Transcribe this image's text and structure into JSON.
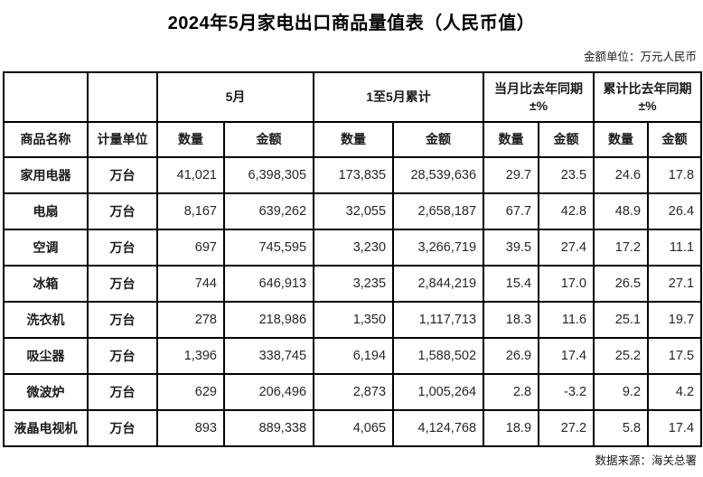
{
  "page": {
    "title": "2024年5月家电出口商品量值表（人民币值）",
    "unit_note": "金额单位：万元人民币",
    "source_note": "数据来源：海关总署"
  },
  "table": {
    "groups": {
      "may": "5月",
      "cumulative": "1至5月累计",
      "month_yoy_line1": "当月比去年同期",
      "month_yoy_line2": "±%",
      "cum_yoy_line1": "累计比去年同期",
      "cum_yoy_line2": "±%"
    },
    "headers": {
      "product": "商品名称",
      "unit": "计量单位",
      "qty": "数量",
      "amount": "金额"
    },
    "column_keys": [
      "product",
      "unit",
      "may_qty",
      "may_amount",
      "cum_qty",
      "cum_amount",
      "month_qty_pct",
      "month_amount_pct",
      "cum_qty_pct",
      "cum_amount_pct"
    ],
    "column_cell_names": [
      "product-name-cell",
      "measure-unit-cell",
      "may-qty-cell",
      "may-amount-cell",
      "cumulative-qty-cell",
      "cumulative-amount-cell",
      "month-yoy-qty-pct-cell",
      "month-yoy-amount-pct-cell",
      "cumulative-yoy-qty-pct-cell",
      "cumulative-yoy-amount-pct-cell"
    ],
    "rows": [
      {
        "product": "家用电器",
        "unit": "万台",
        "may_qty": "41,021",
        "may_amount": "6,398,305",
        "cum_qty": "173,835",
        "cum_amount": "28,539,636",
        "month_qty_pct": "29.7",
        "month_amount_pct": "23.5",
        "cum_qty_pct": "24.6",
        "cum_amount_pct": "17.8"
      },
      {
        "product": "电扇",
        "unit": "万台",
        "may_qty": "8,167",
        "may_amount": "639,262",
        "cum_qty": "32,055",
        "cum_amount": "2,658,187",
        "month_qty_pct": "67.7",
        "month_amount_pct": "42.8",
        "cum_qty_pct": "48.9",
        "cum_amount_pct": "26.4"
      },
      {
        "product": "空调",
        "unit": "万台",
        "may_qty": "697",
        "may_amount": "745,595",
        "cum_qty": "3,230",
        "cum_amount": "3,266,719",
        "month_qty_pct": "39.5",
        "month_amount_pct": "27.4",
        "cum_qty_pct": "17.2",
        "cum_amount_pct": "11.1"
      },
      {
        "product": "冰箱",
        "unit": "万台",
        "may_qty": "744",
        "may_amount": "646,913",
        "cum_qty": "3,235",
        "cum_amount": "2,844,219",
        "month_qty_pct": "15.4",
        "month_amount_pct": "17.0",
        "cum_qty_pct": "26.5",
        "cum_amount_pct": "27.1"
      },
      {
        "product": "洗衣机",
        "unit": "万台",
        "may_qty": "278",
        "may_amount": "218,986",
        "cum_qty": "1,350",
        "cum_amount": "1,117,713",
        "month_qty_pct": "18.3",
        "month_amount_pct": "11.6",
        "cum_qty_pct": "25.1",
        "cum_amount_pct": "19.7"
      },
      {
        "product": "吸尘器",
        "unit": "万台",
        "may_qty": "1,396",
        "may_amount": "338,745",
        "cum_qty": "6,194",
        "cum_amount": "1,588,502",
        "month_qty_pct": "26.9",
        "month_amount_pct": "17.4",
        "cum_qty_pct": "25.2",
        "cum_amount_pct": "17.5"
      },
      {
        "product": "微波炉",
        "unit": "万台",
        "may_qty": "629",
        "may_amount": "206,496",
        "cum_qty": "2,873",
        "cum_amount": "1,005,264",
        "month_qty_pct": "2.8",
        "month_amount_pct": "-3.2",
        "cum_qty_pct": "9.2",
        "cum_amount_pct": "4.2"
      },
      {
        "product": "液晶电视机",
        "unit": "万台",
        "may_qty": "893",
        "may_amount": "889,338",
        "cum_qty": "4,065",
        "cum_amount": "4,124,768",
        "month_qty_pct": "18.9",
        "month_amount_pct": "27.2",
        "cum_qty_pct": "5.8",
        "cum_amount_pct": "17.4"
      }
    ]
  }
}
